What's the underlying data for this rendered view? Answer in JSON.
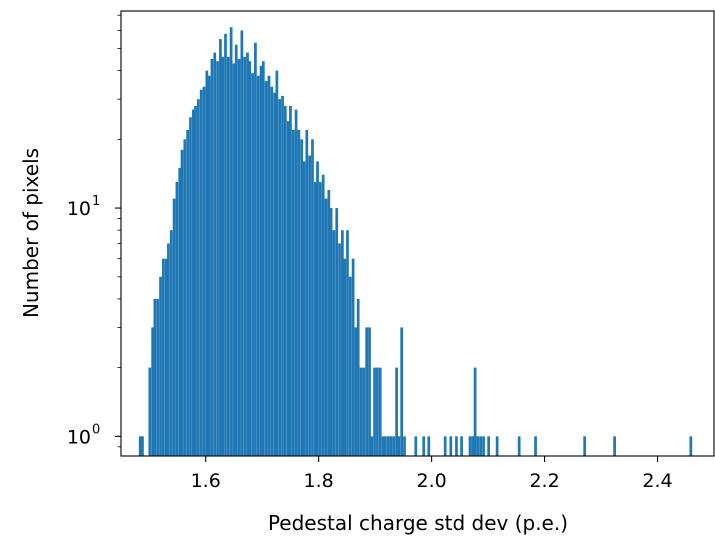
{
  "chart_data": {
    "type": "bar",
    "title": "",
    "xlabel": "Pedestal charge std dev (p.e.)",
    "ylabel": "Number of pixels",
    "xlim": [
      1.45,
      2.5
    ],
    "ylim": [
      0.82,
      73
    ],
    "yscale": "log",
    "x_ticks": [
      "1.6",
      "1.8",
      "2.0",
      "2.2",
      "2.4"
    ],
    "x_tick_values": [
      1.6,
      1.8,
      2.0,
      2.2,
      2.4
    ],
    "y_ticks": [
      {
        "value": 1,
        "base": "10",
        "exp": "0"
      },
      {
        "value": 10,
        "base": "10",
        "exp": "1"
      }
    ],
    "bar_color": "#1f77b4",
    "bin_width": 0.0048,
    "x": [
      1.484,
      1.488,
      1.501,
      1.506,
      1.51,
      1.515,
      1.52,
      1.525,
      1.53,
      1.534,
      1.539,
      1.544,
      1.549,
      1.554,
      1.558,
      1.563,
      1.568,
      1.573,
      1.578,
      1.582,
      1.587,
      1.592,
      1.597,
      1.602,
      1.606,
      1.611,
      1.616,
      1.621,
      1.626,
      1.63,
      1.635,
      1.64,
      1.645,
      1.65,
      1.654,
      1.659,
      1.664,
      1.669,
      1.674,
      1.678,
      1.683,
      1.688,
      1.693,
      1.698,
      1.702,
      1.707,
      1.712,
      1.717,
      1.722,
      1.726,
      1.731,
      1.736,
      1.741,
      1.746,
      1.75,
      1.755,
      1.76,
      1.765,
      1.77,
      1.774,
      1.779,
      1.784,
      1.789,
      1.794,
      1.798,
      1.803,
      1.808,
      1.813,
      1.818,
      1.822,
      1.827,
      1.832,
      1.837,
      1.842,
      1.846,
      1.851,
      1.856,
      1.861,
      1.866,
      1.87,
      1.875,
      1.88,
      1.885,
      1.89,
      1.894,
      1.899,
      1.904,
      1.909,
      1.914,
      1.918,
      1.923,
      1.928,
      1.933,
      1.938,
      1.942,
      1.947,
      1.952,
      1.972,
      1.986,
      1.995,
      2.024,
      2.034,
      2.044,
      2.053,
      2.068,
      2.073,
      2.077,
      2.082,
      2.087,
      2.092,
      2.101,
      2.116,
      2.155,
      2.184,
      2.271,
      2.324,
      2.459
    ],
    "values": [
      1,
      1,
      2,
      3,
      4,
      4,
      5,
      6,
      6,
      7,
      8,
      11,
      13,
      15,
      18,
      20,
      22,
      25,
      27,
      28,
      30,
      33,
      34,
      40,
      38,
      45,
      48,
      44,
      55,
      46,
      58,
      46,
      62,
      43,
      52,
      45,
      60,
      46,
      48,
      44,
      39,
      53,
      38,
      42,
      44,
      36,
      38,
      34,
      32,
      40,
      30,
      31,
      28,
      24,
      28,
      22,
      27,
      22,
      20,
      16,
      22,
      17,
      20,
      13,
      16,
      13,
      14,
      11,
      12,
      10,
      8,
      10,
      7,
      8,
      6,
      8,
      5,
      6,
      3,
      4,
      2,
      2,
      3,
      3,
      1,
      2,
      2,
      2,
      1,
      1,
      1,
      1,
      1,
      2,
      1,
      3,
      1,
      1,
      1,
      1,
      1,
      1,
      1,
      1,
      1,
      1,
      2,
      1,
      1,
      1,
      1,
      1,
      1,
      1,
      1,
      1,
      1
    ]
  }
}
